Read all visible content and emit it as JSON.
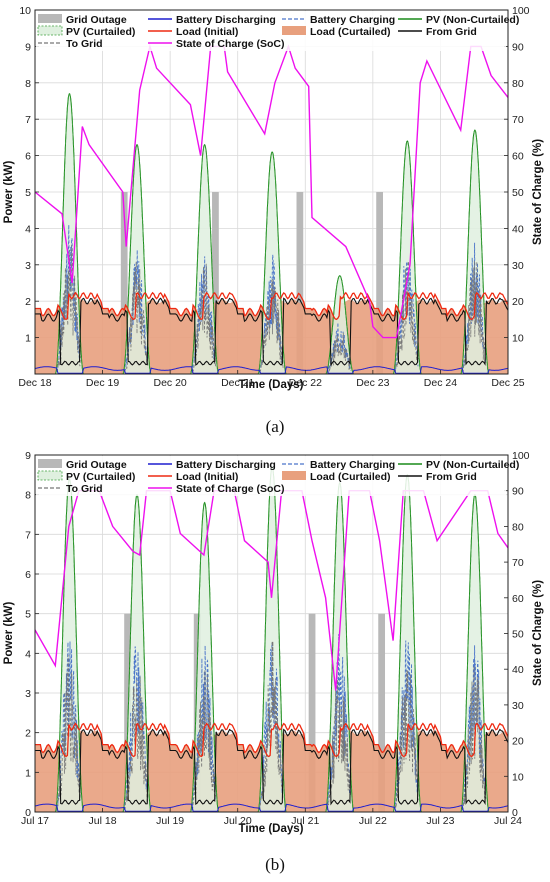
{
  "chart_data": [
    {
      "type": "area",
      "title": "",
      "caption": "(a)",
      "xlabel": "Time (Days)",
      "ylabel": "Power (kW)",
      "y2label": "State of Charge (%)",
      "xlim": [
        0,
        7
      ],
      "x_ticklabels": [
        "Dec 18",
        "Dec 19",
        "Dec 20",
        "Dec 21",
        "Dec 22",
        "Dec 23",
        "Dec 24",
        "Dec 25"
      ],
      "ylim": [
        0,
        10
      ],
      "yticks": [
        1,
        2,
        3,
        4,
        5,
        6,
        7,
        8,
        9,
        10
      ],
      "y2lim": [
        0,
        100
      ],
      "y2ticks": [
        10,
        20,
        30,
        40,
        50,
        60,
        70,
        80,
        90,
        100
      ],
      "grid": true,
      "legend_position": "top",
      "legend": [
        "Grid Outage",
        "Battery Discharging",
        "Battery Charging",
        "PV (Non-Curtailed)",
        "PV (Curtailed)",
        "Load (Initial)",
        "Load (Curtailed)",
        "From Grid",
        "To Grid",
        "State of Charge (SoC)"
      ],
      "grid_outages": [
        {
          "start": 1.27,
          "end": 1.37,
          "kw": 5
        },
        {
          "start": 2.62,
          "end": 2.72,
          "kw": 5
        },
        {
          "start": 3.87,
          "end": 3.97,
          "kw": 5
        },
        {
          "start": 5.05,
          "end": 5.15,
          "kw": 5
        }
      ],
      "pv_peaks_kw": [
        7.7,
        6.3,
        6.3,
        6.1,
        2.7,
        6.4,
        6.7
      ],
      "load_profile": {
        "night_kw": 1.7,
        "evening_peak_kw": 2.2,
        "curtailed_kw": 2.0,
        "from_grid_day_kw": 0.3
      },
      "soc_points": [
        [
          0,
          50
        ],
        [
          0.4,
          44
        ],
        [
          0.55,
          25
        ],
        [
          0.7,
          68
        ],
        [
          0.8,
          63
        ],
        [
          1.3,
          50
        ],
        [
          1.35,
          35
        ],
        [
          1.55,
          78
        ],
        [
          1.7,
          90
        ],
        [
          1.8,
          84
        ],
        [
          2.3,
          74
        ],
        [
          2.45,
          60
        ],
        [
          2.6,
          90
        ],
        [
          2.8,
          90
        ],
        [
          2.85,
          83
        ],
        [
          3.4,
          66
        ],
        [
          3.55,
          80
        ],
        [
          3.75,
          90
        ],
        [
          3.85,
          84
        ],
        [
          4.05,
          79
        ],
        [
          4.1,
          43
        ],
        [
          4.6,
          35
        ],
        [
          4.95,
          20
        ],
        [
          5.0,
          13
        ],
        [
          5.15,
          10
        ],
        [
          5.35,
          10
        ],
        [
          5.55,
          30
        ],
        [
          5.7,
          80
        ],
        [
          5.8,
          86
        ],
        [
          6.3,
          67
        ],
        [
          6.45,
          90
        ],
        [
          6.6,
          90
        ],
        [
          6.75,
          82
        ],
        [
          7.0,
          76
        ]
      ]
    },
    {
      "type": "area",
      "title": "",
      "caption": "(b)",
      "xlabel": "Time (Days)",
      "ylabel": "Power (kW)",
      "y2label": "State of Charge (%)",
      "xlim": [
        0,
        7
      ],
      "x_ticklabels": [
        "Jul 17",
        "Jul 18",
        "Jul 19",
        "Jul 20",
        "Jul 21",
        "Jul 22",
        "Jul 23",
        "Jul 24"
      ],
      "ylim": [
        0,
        9
      ],
      "yticks": [
        0,
        1,
        2,
        3,
        4,
        5,
        6,
        7,
        8,
        9
      ],
      "y2lim": [
        0,
        100
      ],
      "y2ticks": [
        0,
        10,
        20,
        30,
        40,
        50,
        60,
        70,
        80,
        90,
        100
      ],
      "grid": true,
      "legend_position": "top",
      "legend": [
        "Grid Outage",
        "Battery Discharging",
        "Battery Charging",
        "PV (Non-Curtailed)",
        "PV (Curtailed)",
        "Load (Initial)",
        "Load (Curtailed)",
        "From Grid",
        "To Grid",
        "State of Charge (SoC)"
      ],
      "grid_outages": [
        {
          "start": 1.32,
          "end": 1.42,
          "kw": 5
        },
        {
          "start": 2.35,
          "end": 2.45,
          "kw": 5
        },
        {
          "start": 4.05,
          "end": 4.15,
          "kw": 5
        },
        {
          "start": 5.08,
          "end": 5.18,
          "kw": 5
        }
      ],
      "pv_peaks_kw": [
        8.4,
        8.0,
        7.8,
        8.7,
        8.3,
        8.5,
        8.0
      ],
      "load_profile": {
        "night_kw": 1.6,
        "evening_peak_kw": 2.2,
        "curtailed_kw": 2.0,
        "from_grid_day_kw": 0.25
      },
      "soc_points": [
        [
          0,
          51
        ],
        [
          0.3,
          41
        ],
        [
          0.5,
          80
        ],
        [
          0.65,
          90
        ],
        [
          0.95,
          90
        ],
        [
          1.15,
          80
        ],
        [
          1.45,
          73
        ],
        [
          1.55,
          72
        ],
        [
          1.65,
          90
        ],
        [
          2.0,
          90
        ],
        [
          2.15,
          78
        ],
        [
          2.5,
          72
        ],
        [
          2.65,
          90
        ],
        [
          2.95,
          90
        ],
        [
          3.1,
          76
        ],
        [
          3.45,
          70
        ],
        [
          3.5,
          60
        ],
        [
          3.65,
          90
        ],
        [
          3.95,
          90
        ],
        [
          4.1,
          76
        ],
        [
          4.3,
          60
        ],
        [
          4.45,
          34
        ],
        [
          4.65,
          90
        ],
        [
          4.95,
          90
        ],
        [
          5.1,
          76
        ],
        [
          5.3,
          48
        ],
        [
          5.45,
          90
        ],
        [
          5.75,
          90
        ],
        [
          5.95,
          76
        ],
        [
          6.45,
          90
        ],
        [
          6.7,
          90
        ],
        [
          6.85,
          78
        ],
        [
          7.0,
          74
        ]
      ]
    }
  ],
  "colors": {
    "grid_outage": "#b8b8b8",
    "battery_discharging": "#1f1fcf",
    "battery_charging": "#4a74c9",
    "pv_noncurtailed": "#1a8c1a",
    "pv_curtailed": "#3d9e3d",
    "pv_fill": "#dff0df",
    "load_initial": "#ee2a12",
    "load_curtailed": "#e8a07e",
    "from_grid": "#111111",
    "to_grid": "#777777",
    "soc": "#ee10ee"
  }
}
